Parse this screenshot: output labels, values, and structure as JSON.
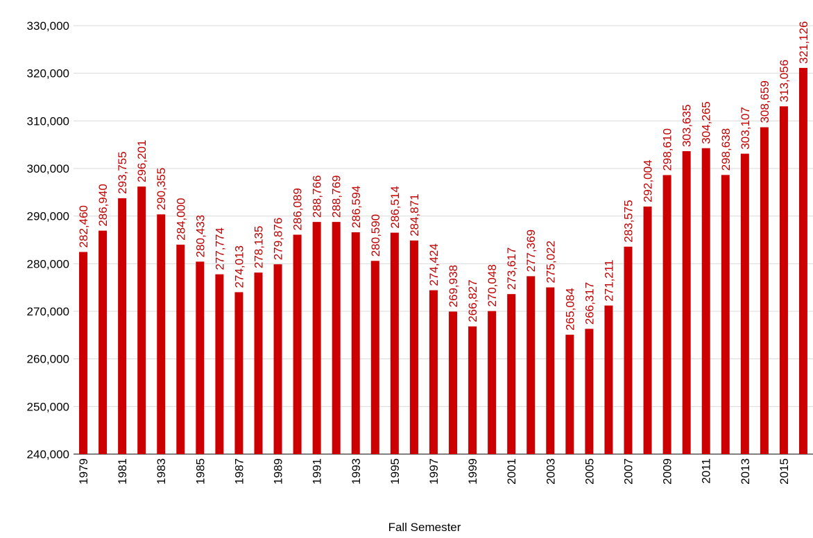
{
  "chart_data": {
    "type": "bar",
    "x_label": "Fall Semester",
    "categories": [
      "1979",
      null,
      "1981",
      null,
      "1983",
      null,
      "1985",
      null,
      "1987",
      null,
      "1989",
      null,
      "1991",
      null,
      "1993",
      null,
      "1995",
      null,
      "1997",
      null,
      "1999",
      null,
      "2001",
      null,
      "2003",
      null,
      "2005",
      null,
      "2007",
      null,
      "2009",
      null,
      "2011",
      null,
      "2013",
      null,
      "2015",
      null
    ],
    "values": [
      282460,
      286940,
      293755,
      296201,
      290355,
      284000,
      280433,
      277774,
      274013,
      278135,
      279876,
      286089,
      288766,
      288769,
      286594,
      280590,
      286514,
      284871,
      274424,
      269938,
      266827,
      270048,
      273617,
      277369,
      275022,
      265084,
      266317,
      271211,
      283575,
      292004,
      298610,
      303635,
      304265,
      298638,
      303107,
      308659,
      313056,
      321126
    ],
    "value_labels": [
      "282,460",
      "286,940",
      "293,755",
      "296,201",
      "290,355",
      "284,000",
      "280,433",
      "277,774",
      "274,013",
      "278,135",
      "279,876",
      "286,089",
      "288,766",
      "288,769",
      "286,594",
      "280,590",
      "286,514",
      "284,871",
      "274,424",
      "269,938",
      "266,827",
      "270,048",
      "273,617",
      "277,369",
      "275,022",
      "265,084",
      "266,317",
      "271,211",
      "283,575",
      "292,004",
      "298,610",
      "303,635",
      "304,265",
      "298,638",
      "303,107",
      "308,659",
      "313,056",
      "321,126"
    ],
    "color": "#cc0000",
    "ylim": [
      240000,
      330000
    ],
    "yticks": [
      {
        "value": 240000,
        "label": "240,000"
      },
      {
        "value": 250000,
        "label": "250,000"
      },
      {
        "value": 260000,
        "label": "260,000"
      },
      {
        "value": 270000,
        "label": "270,000"
      },
      {
        "value": 280000,
        "label": "280,000"
      },
      {
        "value": 290000,
        "label": "290,000"
      },
      {
        "value": 300000,
        "label": "300,000"
      },
      {
        "value": 310000,
        "label": "310,000"
      },
      {
        "value": 320000,
        "label": "320,000"
      },
      {
        "value": 330000,
        "label": "330,000"
      }
    ],
    "grid": true
  }
}
